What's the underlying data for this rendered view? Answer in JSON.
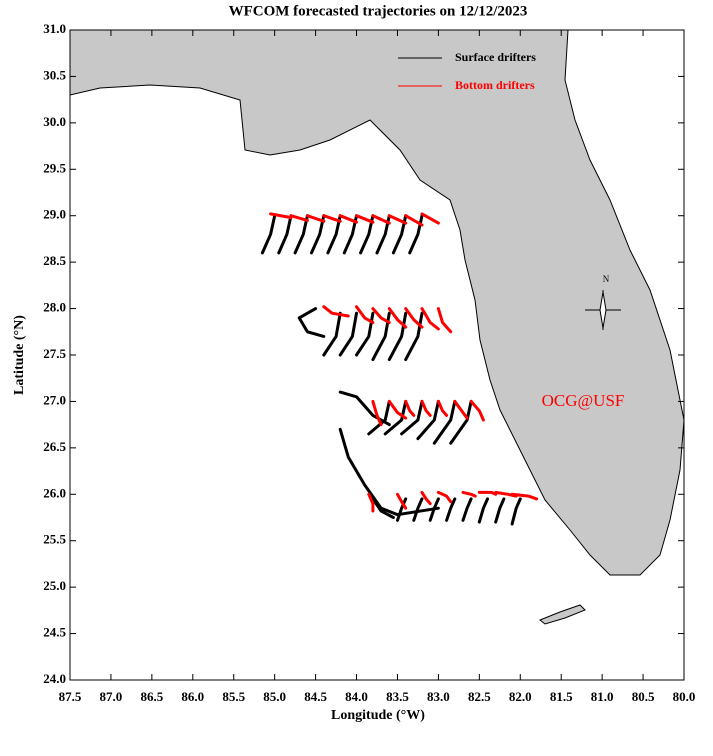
{
  "chart_data": {
    "type": "trajectory",
    "title": "WFCOM forecasted trajectories on 12/12/2023",
    "xlabel": "Longitude (°W)",
    "ylabel": "Latitude (°N)",
    "annotation": "OCG@USF",
    "compass_label": "N",
    "xlim": [
      87.5,
      80.0
    ],
    "ylim": [
      24.0,
      31.0
    ],
    "xticks": [
      87.5,
      {
        "value": 87,
        "label": "87.0"
      },
      86.5,
      {
        "value": 86,
        "label": "86.0"
      },
      85.5,
      {
        "value": 85,
        "label": "85.0"
      },
      84.5,
      {
        "value": 84,
        "label": "84.0"
      },
      83.5,
      {
        "value": 83,
        "label": "83.0"
      },
      82.5,
      {
        "value": 82,
        "label": "82.0"
      },
      81.5,
      {
        "value": 81,
        "label": "81.0"
      },
      80.5,
      {
        "value": 80,
        "label": "80.0"
      }
    ],
    "yticks": [
      {
        "value": 24,
        "label": "24.0"
      },
      24.5,
      {
        "value": 25,
        "label": "25.0"
      },
      25.5,
      {
        "value": 26,
        "label": "26.0"
      },
      26.5,
      {
        "value": 27,
        "label": "27.0"
      },
      27.5,
      {
        "value": 28,
        "label": "28.0"
      },
      28.5,
      {
        "value": 29,
        "label": "29.0"
      },
      29.5,
      {
        "value": 30,
        "label": "30.0"
      },
      30.5,
      {
        "value": 31,
        "label": "31.0"
      }
    ],
    "series": [
      {
        "name": "Surface drifters",
        "color": "#000000",
        "tracks": [
          {
            "x": [
              85.0,
              85.05,
              85.15
            ],
            "y": [
              29.0,
              28.8,
              28.6
            ]
          },
          {
            "x": [
              84.8,
              84.85,
              84.95
            ],
            "y": [
              29.0,
              28.8,
              28.6
            ]
          },
          {
            "x": [
              84.6,
              84.65,
              84.75
            ],
            "y": [
              29.0,
              28.8,
              28.6
            ]
          },
          {
            "x": [
              84.4,
              84.45,
              84.55
            ],
            "y": [
              29.0,
              28.8,
              28.6
            ]
          },
          {
            "x": [
              84.2,
              84.25,
              84.35
            ],
            "y": [
              29.0,
              28.8,
              28.6
            ]
          },
          {
            "x": [
              84.0,
              84.05,
              84.15
            ],
            "y": [
              29.0,
              28.8,
              28.6
            ]
          },
          {
            "x": [
              83.8,
              83.85,
              83.95
            ],
            "y": [
              29.0,
              28.8,
              28.6
            ]
          },
          {
            "x": [
              83.6,
              83.65,
              83.75
            ],
            "y": [
              29.0,
              28.8,
              28.6
            ]
          },
          {
            "x": [
              83.4,
              83.45,
              83.55
            ],
            "y": [
              29.0,
              28.8,
              28.6
            ]
          },
          {
            "x": [
              83.2,
              83.25,
              83.35
            ],
            "y": [
              29.0,
              28.8,
              28.6
            ]
          },
          {
            "x": [
              84.5,
              84.7,
              84.6,
              84.4
            ],
            "y": [
              28.0,
              27.9,
              27.75,
              27.7
            ]
          },
          {
            "x": [
              84.2,
              84.25,
              84.4
            ],
            "y": [
              27.95,
              27.7,
              27.5
            ]
          },
          {
            "x": [
              84.0,
              84.05,
              84.2
            ],
            "y": [
              27.95,
              27.7,
              27.5
            ]
          },
          {
            "x": [
              83.8,
              83.85,
              84.0
            ],
            "y": [
              27.95,
              27.7,
              27.5
            ]
          },
          {
            "x": [
              83.6,
              83.65,
              83.8
            ],
            "y": [
              27.95,
              27.7,
              27.45
            ]
          },
          {
            "x": [
              83.4,
              83.45,
              83.6
            ],
            "y": [
              27.95,
              27.7,
              27.45
            ]
          },
          {
            "x": [
              83.2,
              83.25,
              83.4
            ],
            "y": [
              27.95,
              27.7,
              27.45
            ]
          },
          {
            "x": [
              84.2,
              84.0,
              83.8,
              83.6
            ],
            "y": [
              27.1,
              27.05,
              26.85,
              26.75
            ]
          },
          {
            "x": [
              83.6,
              83.65,
              83.85
            ],
            "y": [
              27.0,
              26.8,
              26.65
            ]
          },
          {
            "x": [
              83.4,
              83.45,
              83.65
            ],
            "y": [
              27.0,
              26.8,
              26.65
            ]
          },
          {
            "x": [
              83.2,
              83.25,
              83.45
            ],
            "y": [
              27.0,
              26.8,
              26.65
            ]
          },
          {
            "x": [
              83.0,
              83.05,
              83.25
            ],
            "y": [
              27.0,
              26.8,
              26.6
            ]
          },
          {
            "x": [
              82.8,
              82.85,
              83.05
            ],
            "y": [
              27.0,
              26.8,
              26.55
            ]
          },
          {
            "x": [
              82.6,
              82.65,
              82.85
            ],
            "y": [
              27.0,
              26.8,
              26.55
            ]
          },
          {
            "x": [
              84.2,
              84.1,
              83.9,
              83.7,
              83.5,
              83.0
            ],
            "y": [
              26.7,
              26.4,
              26.1,
              25.85,
              25.78,
              25.85
            ]
          },
          {
            "x": [
              83.8,
              83.7,
              83.55
            ],
            "y": [
              25.95,
              25.82,
              25.75
            ]
          },
          {
            "x": [
              83.4,
              83.45,
              83.5
            ],
            "y": [
              25.95,
              25.85,
              25.72
            ]
          },
          {
            "x": [
              83.2,
              83.25,
              83.3
            ],
            "y": [
              25.95,
              25.85,
              25.72
            ]
          },
          {
            "x": [
              83.0,
              83.05,
              83.1
            ],
            "y": [
              25.95,
              25.85,
              25.72
            ]
          },
          {
            "x": [
              82.8,
              82.85,
              82.9
            ],
            "y": [
              25.95,
              25.85,
              25.72
            ]
          },
          {
            "x": [
              82.6,
              82.65,
              82.7
            ],
            "y": [
              25.95,
              25.85,
              25.72
            ]
          },
          {
            "x": [
              82.4,
              82.45,
              82.5
            ],
            "y": [
              25.95,
              25.85,
              25.7
            ]
          },
          {
            "x": [
              82.2,
              82.25,
              82.3
            ],
            "y": [
              25.95,
              25.85,
              25.7
            ]
          },
          {
            "x": [
              82.0,
              82.05,
              82.1
            ],
            "y": [
              25.95,
              25.85,
              25.68
            ]
          }
        ]
      },
      {
        "name": "Bottom drifters",
        "color": "#ff0000",
        "tracks": [
          {
            "x": [
              85.05,
              84.8
            ],
            "y": [
              29.02,
              28.98
            ]
          },
          {
            "x": [
              84.8,
              84.6
            ],
            "y": [
              29.0,
              28.95
            ]
          },
          {
            "x": [
              84.6,
              84.4
            ],
            "y": [
              29.0,
              28.94
            ]
          },
          {
            "x": [
              84.4,
              84.2
            ],
            "y": [
              29.0,
              28.94
            ]
          },
          {
            "x": [
              84.2,
              84.0
            ],
            "y": [
              29.0,
              28.93
            ]
          },
          {
            "x": [
              84.0,
              83.8
            ],
            "y": [
              29.0,
              28.93
            ]
          },
          {
            "x": [
              83.8,
              83.6
            ],
            "y": [
              29.0,
              28.92
            ]
          },
          {
            "x": [
              83.6,
              83.4
            ],
            "y": [
              29.0,
              28.92
            ]
          },
          {
            "x": [
              83.4,
              83.2
            ],
            "y": [
              29.0,
              28.9
            ]
          },
          {
            "x": [
              83.2,
              83.0
            ],
            "y": [
              29.02,
              28.92
            ]
          },
          {
            "x": [
              84.4,
              84.3,
              84.1
            ],
            "y": [
              28.02,
              27.95,
              27.92
            ]
          },
          {
            "x": [
              84.0,
              83.9,
              83.8
            ],
            "y": [
              28.02,
              27.9,
              27.85
            ]
          },
          {
            "x": [
              83.8,
              83.7,
              83.6
            ],
            "y": [
              28.0,
              27.9,
              27.85
            ]
          },
          {
            "x": [
              83.6,
              83.5,
              83.4
            ],
            "y": [
              28.0,
              27.88,
              27.8
            ]
          },
          {
            "x": [
              83.4,
              83.3,
              83.2
            ],
            "y": [
              28.0,
              27.88,
              27.8
            ]
          },
          {
            "x": [
              83.2,
              83.1,
              83.0
            ],
            "y": [
              28.0,
              27.85,
              27.78
            ]
          },
          {
            "x": [
              83.0,
              82.95,
              82.85
            ],
            "y": [
              28.0,
              27.85,
              27.75
            ]
          },
          {
            "x": [
              83.8,
              83.75,
              83.7
            ],
            "y": [
              27.0,
              26.85,
              26.75
            ]
          },
          {
            "x": [
              83.6,
              83.5,
              83.4
            ],
            "y": [
              27.0,
              26.88,
              26.82
            ]
          },
          {
            "x": [
              83.4,
              83.35,
              83.3
            ],
            "y": [
              27.0,
              26.9,
              26.85
            ]
          },
          {
            "x": [
              83.2,
              83.15,
              83.1
            ],
            "y": [
              27.0,
              26.9,
              26.85
            ]
          },
          {
            "x": [
              83.0,
              82.95,
              82.9
            ],
            "y": [
              27.0,
              26.9,
              26.85
            ]
          },
          {
            "x": [
              82.8,
              82.7,
              82.65
            ],
            "y": [
              27.0,
              26.88,
              26.82
            ]
          },
          {
            "x": [
              82.6,
              82.5,
              82.45
            ],
            "y": [
              27.0,
              26.9,
              26.8
            ]
          },
          {
            "x": [
              83.85,
              83.8,
              83.8
            ],
            "y": [
              26.0,
              25.9,
              25.82
            ]
          },
          {
            "x": [
              83.5,
              83.45,
              83.4
            ],
            "y": [
              26.0,
              25.92,
              25.85
            ]
          },
          {
            "x": [
              83.2,
              83.15,
              83.1
            ],
            "y": [
              26.02,
              25.95,
              25.9
            ]
          },
          {
            "x": [
              83.0,
              82.9,
              82.85
            ],
            "y": [
              26.02,
              25.98,
              25.92
            ]
          },
          {
            "x": [
              82.7,
              82.6,
              82.55
            ],
            "y": [
              26.02,
              26.0,
              25.98
            ]
          },
          {
            "x": [
              82.5,
              82.35,
              82.3
            ],
            "y": [
              26.02,
              26.02,
              26.0
            ]
          },
          {
            "x": [
              82.3,
              82.15,
              82.05
            ],
            "y": [
              26.02,
              26.0,
              25.98
            ]
          },
          {
            "x": [
              82.1,
              81.9,
              81.8
            ],
            "y": [
              26.0,
              25.98,
              25.95
            ]
          }
        ]
      }
    ]
  }
}
